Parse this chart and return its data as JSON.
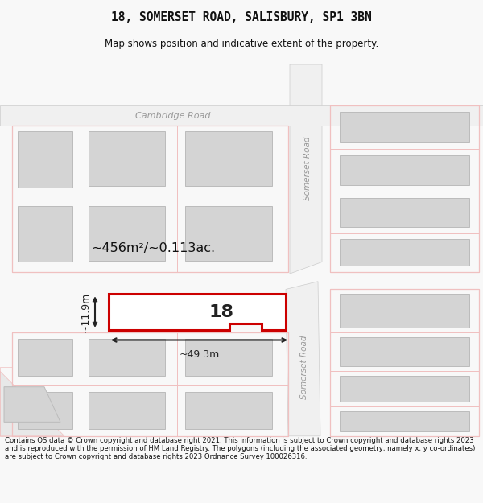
{
  "title_line1": "18, SOMERSET ROAD, SALISBURY, SP1 3BN",
  "title_line2": "Map shows position and indicative extent of the property.",
  "footer_text": "Contains OS data © Crown copyright and database right 2021. This information is subject to Crown copyright and database rights 2023 and is reproduced with the permission of HM Land Registry. The polygons (including the associated geometry, namely x, y co-ordinates) are subject to Crown copyright and database rights 2023 Ordnance Survey 100026316.",
  "background_color": "#f8f8f8",
  "map_background": "#ffffff",
  "road_color": "#f0c0c0",
  "plot_edge": "#e8a0a0",
  "building_fill": "#d4d4d4",
  "building_edge": "#bbbbbb",
  "highlight_color": "#cc0000",
  "road_fill": "#f0f0f0",
  "road_label_color": "#999999",
  "annotation_color": "#111111",
  "area_label": "~456m²/~0.113ac.",
  "width_label": "~49.3m",
  "height_label": "~11.9m",
  "property_number": "18",
  "somerset_road_label": "Somerset Road",
  "cambridge_road_label": "Cambridge Road"
}
